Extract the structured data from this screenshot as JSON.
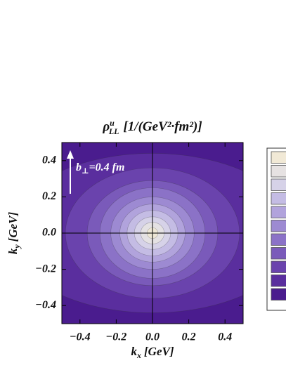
{
  "chart_data": {
    "type": "contour",
    "title": {
      "symbol": "ρ",
      "superscript": "u",
      "subscript": "LL",
      "units": "[1/(GeV²·fm²)]"
    },
    "xlabel": {
      "symbol": "k",
      "subscript": "x",
      "units": "[GeV]"
    },
    "ylabel": {
      "symbol": "k",
      "subscript": "y",
      "units": "[GeV]"
    },
    "annotation": {
      "symbol": "b",
      "subscript": "⊥",
      "text": "=0.4 fm"
    },
    "xlim": [
      -0.5,
      0.5
    ],
    "ylim": [
      -0.5,
      0.5
    ],
    "xticks": [
      {
        "value": -0.4,
        "label": "−0.4"
      },
      {
        "value": -0.2,
        "label": "−0.2"
      },
      {
        "value": 0,
        "label": "0.0"
      },
      0.2,
      0.4
    ],
    "yticks": [
      {
        "value": -0.4,
        "label": "−0.4"
      },
      {
        "value": -0.2,
        "label": "−0.2"
      },
      {
        "value": 0,
        "label": "0.0"
      },
      0.2,
      0.4
    ],
    "background": "#4a1c8e",
    "contours": [
      {
        "color": "#5a2e9e",
        "rx": 0.8,
        "ry": 0.44
      },
      {
        "color": "#6a43ad",
        "rx": 0.48,
        "ry": 0.36
      },
      {
        "color": "#7a5aba",
        "rx": 0.36,
        "ry": 0.29
      },
      {
        "color": "#8b72c7",
        "rx": 0.29,
        "ry": 0.25
      },
      {
        "color": "#9d8ad2",
        "rx": 0.23,
        "ry": 0.2
      },
      {
        "color": "#b1a3dc",
        "rx": 0.18,
        "ry": 0.16
      },
      {
        "color": "#c4bce4",
        "rx": 0.14,
        "ry": 0.125
      },
      {
        "color": "#d6d2e8",
        "rx": 0.1,
        "ry": 0.09
      },
      {
        "color": "#e4e1e3",
        "rx": 0.065,
        "ry": 0.06
      },
      {
        "color": "#eee7d6",
        "rx": 0.03,
        "ry": 0.03
      }
    ],
    "legend_colors": [
      "#f1e9d6",
      "#e6e2e2",
      "#d6d2e8",
      "#c4bce4",
      "#b1a3dc",
      "#9d8ad2",
      "#8b72c7",
      "#7a5aba",
      "#6a43ad",
      "#5a2e9e",
      "#4a1c8e"
    ]
  }
}
